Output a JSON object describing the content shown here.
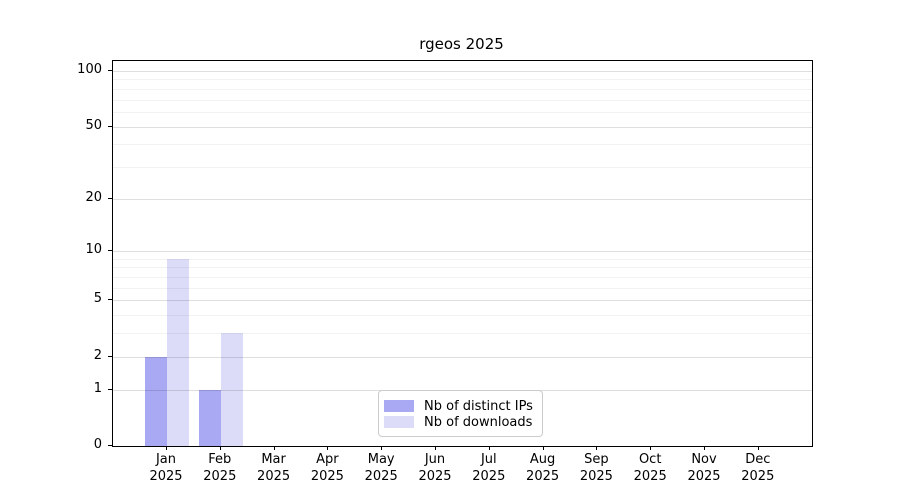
{
  "chart_data": {
    "type": "bar",
    "title": "rgeos 2025",
    "categories": [
      "Jan",
      "Feb",
      "Mar",
      "Apr",
      "May",
      "Jun",
      "Jul",
      "Aug",
      "Sep",
      "Oct",
      "Nov",
      "Dec"
    ],
    "year_label": "2025",
    "series": [
      {
        "name": "Nb of distinct IPs",
        "color": "#a9a9f3",
        "values": [
          2,
          1,
          0,
          0,
          0,
          0,
          0,
          0,
          0,
          0,
          0,
          0
        ]
      },
      {
        "name": "Nb of downloads",
        "color": "#dcdcf8",
        "values": [
          9,
          3,
          0,
          0,
          0,
          0,
          0,
          0,
          0,
          0,
          0,
          0
        ]
      }
    ],
    "yscale": "log1p",
    "ylim": [
      0,
      100
    ],
    "yticks": [
      0,
      1,
      2,
      5,
      10,
      20,
      50,
      100
    ],
    "minor_gridlines": [
      3,
      4,
      6,
      7,
      8,
      9,
      30,
      40,
      60,
      70,
      80,
      90
    ],
    "grid": "horizontal",
    "grid_major_color": "rgba(0,0,0,0.13)",
    "grid_minor_color": "rgba(0,0,0,0.05)",
    "legend_position": "lower center"
  },
  "legend": {
    "items": [
      {
        "label": "Nb of distinct IPs"
      },
      {
        "label": "Nb of downloads"
      }
    ]
  }
}
